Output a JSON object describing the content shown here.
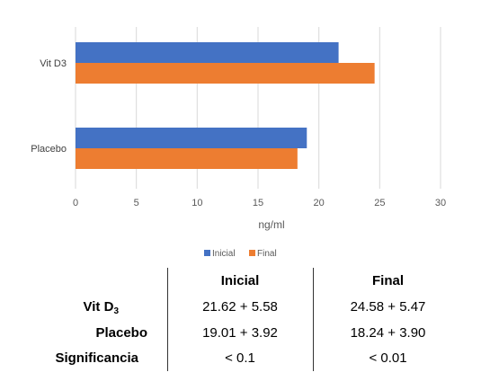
{
  "chart_data": {
    "type": "bar",
    "orientation": "horizontal",
    "categories": [
      "Vit D3",
      "Placebo"
    ],
    "series": [
      {
        "name": "Inicial",
        "values": [
          21.62,
          19.01
        ],
        "color": "#4472C4"
      },
      {
        "name": "Final",
        "values": [
          24.58,
          18.24
        ],
        "color": "#ED7D31"
      }
    ],
    "xlabel": "ng/ml",
    "xlim": [
      0,
      30
    ],
    "xticks": [
      0,
      5,
      10,
      15,
      20,
      25,
      30
    ],
    "grid": "vertical",
    "legend_position": "bottom"
  },
  "table": {
    "headers": [
      "Inicial",
      "Final"
    ],
    "rows": [
      {
        "label": "Vit D",
        "label_sub": "3",
        "inicial": "21.62 + 5.58",
        "final": "24.58 + 5.47"
      },
      {
        "label": "Placebo",
        "label_sub": "",
        "inicial": "19.01 + 3.92",
        "final": "18.24 + 3.90"
      },
      {
        "label": "Significancia",
        "label_sub": "",
        "inicial": "< 0.1",
        "final": "< 0.01"
      }
    ]
  }
}
